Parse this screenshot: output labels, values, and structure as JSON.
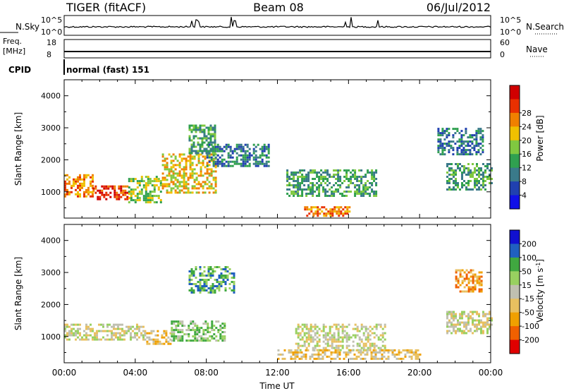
{
  "header": {
    "radar": "TIGER (fitACF)",
    "beam": "Beam 08",
    "date": "06/Jul/2012"
  },
  "panels": {
    "nsky": {
      "label": "N.Sky",
      "right_label": "N.Search",
      "ticks_left": [
        "10^5",
        "10^0"
      ],
      "ticks_right": [
        "10^5",
        "10^0"
      ]
    },
    "freq": {
      "label_line1": "Freq.",
      "label_line2": "[MHz]",
      "right_label": "Nave",
      "ticks_left": [
        "18",
        "8"
      ],
      "ticks_right": [
        "60",
        "0"
      ]
    },
    "cpid": {
      "label": "CPID",
      "value": "normal (fast) 151"
    }
  },
  "chart_data": [
    {
      "type": "heatmap",
      "title": "",
      "quantity": "Power",
      "ylabel": "Slant Range [km]",
      "ylim": [
        180,
        4500
      ],
      "yticks": [
        "1000",
        "2000",
        "3000",
        "4000"
      ],
      "xlabel": "",
      "xlim": [
        "00:00",
        "24:00"
      ],
      "colorbar": {
        "label": "Power [dB]",
        "ticks": [
          "4",
          "8",
          "12",
          "16",
          "20",
          "24",
          "28"
        ],
        "colors": [
          "#1010e8",
          "#2040b0",
          "#3a7a8a",
          "#30a050",
          "#80c840",
          "#f0c000",
          "#f08000",
          "#e83000",
          "#d00000"
        ]
      },
      "echo_regions": [
        {
          "t": [
            0.0,
            1.6
          ],
          "range": [
            850,
            1550
          ],
          "power_dB": 22
        },
        {
          "t": [
            1.6,
            3.6
          ],
          "range": [
            800,
            1200
          ],
          "power_dB": 26
        },
        {
          "t": [
            3.6,
            5.5
          ],
          "range": [
            700,
            1500
          ],
          "power_dB": 14
        },
        {
          "t": [
            5.5,
            8.5
          ],
          "range": [
            1000,
            2200
          ],
          "power_dB": 18
        },
        {
          "t": [
            7.0,
            8.5
          ],
          "range": [
            2200,
            3100
          ],
          "power_dB": 10
        },
        {
          "t": [
            8.0,
            11.5
          ],
          "range": [
            1800,
            2500
          ],
          "power_dB": 8
        },
        {
          "t": [
            12.5,
            17.5
          ],
          "range": [
            900,
            1700
          ],
          "power_dB": 10
        },
        {
          "t": [
            13.5,
            16.0
          ],
          "range": [
            250,
            550
          ],
          "power_dB": 24
        },
        {
          "t": [
            21.5,
            24.0
          ],
          "range": [
            1100,
            1900
          ],
          "power_dB": 10
        },
        {
          "t": [
            21.0,
            23.5
          ],
          "range": [
            2200,
            3000
          ],
          "power_dB": 8
        }
      ]
    },
    {
      "type": "heatmap",
      "title": "",
      "quantity": "Velocity",
      "ylabel": "Slant Range [km]",
      "ylim": [
        180,
        4500
      ],
      "yticks": [
        "1000",
        "2000",
        "3000",
        "4000"
      ],
      "xlabel": "Time UT",
      "xlim": [
        "00:00",
        "24:00"
      ],
      "xticks": [
        "00:00",
        "04:00",
        "08:00",
        "12:00",
        "16:00",
        "20:00",
        "00:00"
      ],
      "colorbar": {
        "label": "Velocity [m s",
        "label_sup": "-1",
        "label_end": "]",
        "ticks": [
          "200",
          "100",
          "50",
          "15",
          "-15",
          "-50",
          "-100",
          "-200"
        ],
        "colors": [
          "#1010d0",
          "#2060c0",
          "#40a840",
          "#98d060",
          "#c0c0b0",
          "#e8c060",
          "#f0a000",
          "#f06000",
          "#e00000"
        ]
      },
      "echo_regions": [
        {
          "t": [
            0.0,
            4.5
          ],
          "range": [
            900,
            1400
          ],
          "velocity": 0
        },
        {
          "t": [
            4.5,
            6.0
          ],
          "range": [
            800,
            1200
          ],
          "velocity": -30
        },
        {
          "t": [
            6.0,
            9.0
          ],
          "range": [
            900,
            1500
          ],
          "velocity": 30
        },
        {
          "t": [
            7.0,
            9.5
          ],
          "range": [
            2400,
            3200
          ],
          "velocity": 120
        },
        {
          "t": [
            13.0,
            18.0
          ],
          "range": [
            600,
            1400
          ],
          "velocity": 0
        },
        {
          "t": [
            12.0,
            20.0
          ],
          "range": [
            300,
            600
          ],
          "velocity": -40
        },
        {
          "t": [
            21.5,
            24.0
          ],
          "range": [
            1100,
            1800
          ],
          "velocity": 0
        },
        {
          "t": [
            22.0,
            23.5
          ],
          "range": [
            2400,
            3100
          ],
          "velocity": -120
        }
      ]
    }
  ]
}
